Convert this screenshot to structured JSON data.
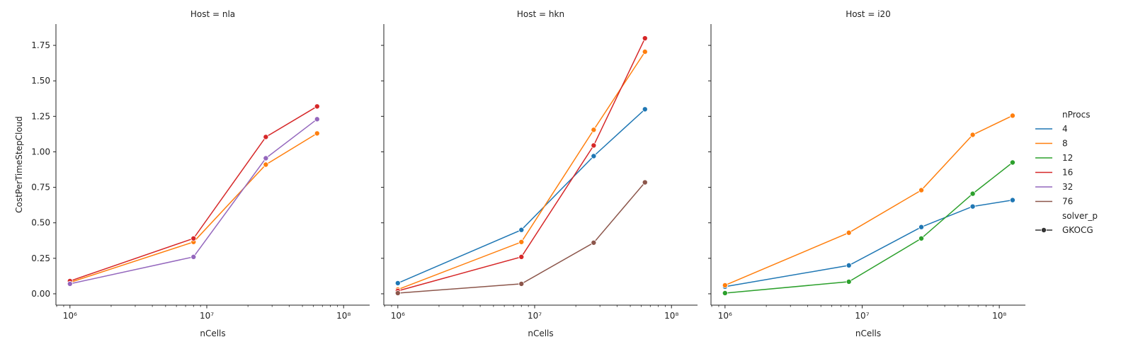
{
  "chart_data": [
    {
      "type": "line",
      "title": "Host = nla",
      "xlabel": "nCells",
      "ylabel": "CostPerTimeStepCloud",
      "x_scale": "log",
      "xlim": [
        790000,
        155000000
      ],
      "ylim": [
        -0.08,
        1.9
      ],
      "xticks": [
        {
          "value": 1000000,
          "label": "10⁶"
        },
        {
          "value": 10000000,
          "label": "10⁷"
        },
        {
          "value": 100000000,
          "label": "10⁸"
        }
      ],
      "yticks": [
        {
          "value": 0.0,
          "label": "0.00"
        },
        {
          "value": 0.25,
          "label": "0.25"
        },
        {
          "value": 0.5,
          "label": "0.50"
        },
        {
          "value": 0.75,
          "label": "0.75"
        },
        {
          "value": 1.0,
          "label": "1.00"
        },
        {
          "value": 1.25,
          "label": "1.25"
        },
        {
          "value": 1.5,
          "label": "1.50"
        },
        {
          "value": 1.75,
          "label": "1.75"
        }
      ],
      "series": [
        {
          "name": "8",
          "color": "#ff7f0e",
          "x": [
            1000000,
            8000000,
            27000000,
            64000000
          ],
          "y": [
            0.08,
            0.365,
            0.91,
            1.13
          ]
        },
        {
          "name": "16",
          "color": "#d62728",
          "x": [
            1000000,
            8000000,
            27000000,
            64000000
          ],
          "y": [
            0.09,
            0.39,
            1.105,
            1.32
          ]
        },
        {
          "name": "32",
          "color": "#9467bd",
          "x": [
            1000000,
            8000000,
            27000000,
            64000000
          ],
          "y": [
            0.07,
            0.26,
            0.955,
            1.23
          ]
        }
      ]
    },
    {
      "type": "line",
      "title": "Host = hkn",
      "xlabel": "nCells",
      "ylabel": "",
      "x_scale": "log",
      "xlim": [
        790000,
        155000000
      ],
      "ylim": [
        -0.08,
        1.9
      ],
      "xticks": [
        {
          "value": 1000000,
          "label": "10⁶"
        },
        {
          "value": 10000000,
          "label": "10⁷"
        },
        {
          "value": 100000000,
          "label": "10⁸"
        }
      ],
      "yticks": [],
      "series": [
        {
          "name": "4",
          "color": "#1f77b4",
          "x": [
            1000000,
            8000000,
            27000000,
            64000000
          ],
          "y": [
            0.075,
            0.45,
            0.97,
            1.3
          ]
        },
        {
          "name": "8",
          "color": "#ff7f0e",
          "x": [
            1000000,
            8000000,
            27000000,
            64000000
          ],
          "y": [
            0.03,
            0.365,
            1.155,
            1.705
          ]
        },
        {
          "name": "16",
          "color": "#d62728",
          "x": [
            1000000,
            8000000,
            27000000,
            64000000
          ],
          "y": [
            0.02,
            0.26,
            1.045,
            1.8
          ]
        },
        {
          "name": "76",
          "color": "#8c564b",
          "x": [
            1000000,
            8000000,
            27000000,
            64000000
          ],
          "y": [
            0.005,
            0.07,
            0.36,
            0.785
          ]
        }
      ]
    },
    {
      "type": "line",
      "title": "Host = i20",
      "xlabel": "nCells",
      "ylabel": "",
      "x_scale": "log",
      "xlim": [
        790000,
        155000000
      ],
      "ylim": [
        -0.08,
        1.9
      ],
      "xticks": [
        {
          "value": 1000000,
          "label": "10⁶"
        },
        {
          "value": 10000000,
          "label": "10⁷"
        },
        {
          "value": 100000000,
          "label": "10⁸"
        }
      ],
      "yticks": [],
      "series": [
        {
          "name": "4",
          "color": "#1f77b4",
          "x": [
            1000000,
            8000000,
            27000000,
            64000000,
            125000000
          ],
          "y": [
            0.05,
            0.2,
            0.47,
            0.615,
            0.66
          ]
        },
        {
          "name": "8",
          "color": "#ff7f0e",
          "x": [
            1000000,
            8000000,
            27000000,
            64000000,
            125000000
          ],
          "y": [
            0.06,
            0.43,
            0.73,
            1.12,
            1.255
          ]
        },
        {
          "name": "12",
          "color": "#2ca02c",
          "x": [
            1000000,
            8000000,
            27000000,
            64000000,
            125000000
          ],
          "y": [
            0.005,
            0.085,
            0.39,
            0.705,
            0.925
          ]
        }
      ]
    }
  ],
  "legend": {
    "placement": "right",
    "hue_title": "nProcs",
    "hue_items": [
      {
        "label": "4",
        "color": "#1f77b4"
      },
      {
        "label": "8",
        "color": "#ff7f0e"
      },
      {
        "label": "12",
        "color": "#2ca02c"
      },
      {
        "label": "16",
        "color": "#d62728"
      },
      {
        "label": "32",
        "color": "#9467bd"
      },
      {
        "label": "76",
        "color": "#8c564b"
      }
    ],
    "style_title": "solver_p",
    "style_items": [
      {
        "label": "GKOCG",
        "color": "#333333"
      }
    ]
  }
}
